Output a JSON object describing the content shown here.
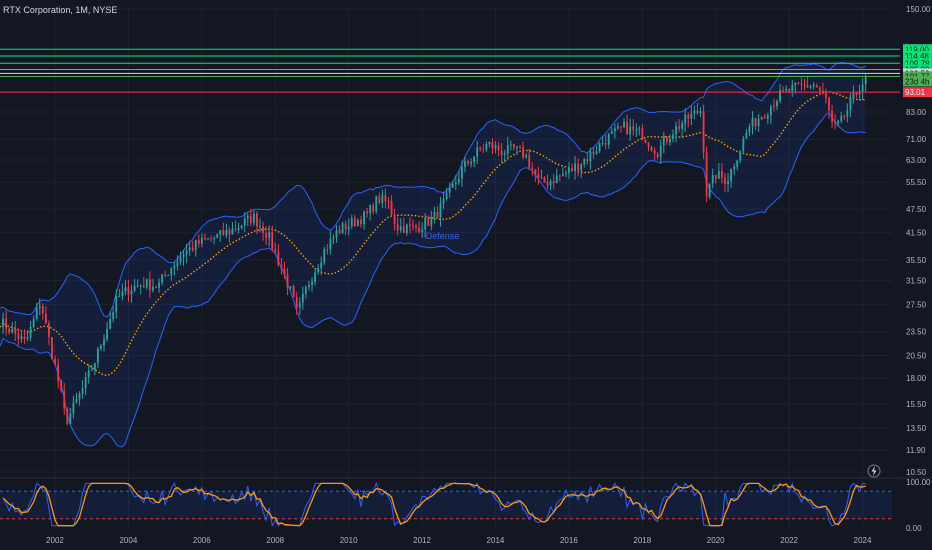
{
  "header": {
    "title": "RTX Corporation, 1M, NYSE"
  },
  "chart_data": [
    {
      "type": "candlestick",
      "title": "RTX Corporation, 1M, NYSE",
      "x_range": [
        2001.0,
        2025.3
      ],
      "y_scale": "log",
      "ylim": [
        10.5,
        150.0
      ],
      "grid": true,
      "y_tick_labels": [
        "150.00",
        "83.00",
        "71.00",
        "63.00",
        "55.50",
        "47.50",
        "41.50",
        "35.50",
        "31.50",
        "27.50",
        "23.50",
        "20.50",
        "18.00",
        "15.50",
        "13.50",
        "11.90",
        "10.50"
      ],
      "x_tick_labels": [
        "2002",
        "2004",
        "2006",
        "2008",
        "2010",
        "2012",
        "2014",
        "2016",
        "2018",
        "2020",
        "2022",
        "2024"
      ],
      "price_anchors": [
        [
          2001.0,
          25.0
        ],
        [
          2001.7,
          22.0
        ],
        [
          2002.1,
          28.0
        ],
        [
          2002.6,
          17.5
        ],
        [
          2002.8,
          14.0
        ],
        [
          2003.2,
          16.5
        ],
        [
          2003.6,
          20.0
        ],
        [
          2003.9,
          24.0
        ],
        [
          2004.2,
          28.5
        ],
        [
          2004.5,
          30.0
        ],
        [
          2004.9,
          31.0
        ],
        [
          2005.3,
          30.5
        ],
        [
          2005.6,
          33.5
        ],
        [
          2006.0,
          37.0
        ],
        [
          2006.4,
          39.0
        ],
        [
          2006.9,
          40.5
        ],
        [
          2007.3,
          42.0
        ],
        [
          2007.9,
          45.5
        ],
        [
          2008.3,
          41.0
        ],
        [
          2008.6,
          35.0
        ],
        [
          2008.9,
          30.0
        ],
        [
          2009.1,
          26.0
        ],
        [
          2009.4,
          31.0
        ],
        [
          2009.8,
          37.0
        ],
        [
          2010.2,
          42.0
        ],
        [
          2010.6,
          44.0
        ],
        [
          2011.0,
          46.0
        ],
        [
          2011.3,
          50.5
        ],
        [
          2011.6,
          49.0
        ],
        [
          2011.8,
          43.0
        ],
        [
          2012.3,
          42.5
        ],
        [
          2012.8,
          45.0
        ],
        [
          2013.2,
          51.0
        ],
        [
          2013.6,
          60.0
        ],
        [
          2014.0,
          66.0
        ],
        [
          2014.3,
          69.0
        ],
        [
          2014.7,
          66.0
        ],
        [
          2015.0,
          67.0
        ],
        [
          2015.3,
          65.0
        ],
        [
          2015.7,
          55.0
        ],
        [
          2016.0,
          56.0
        ],
        [
          2016.5,
          59.0
        ],
        [
          2017.0,
          64.0
        ],
        [
          2017.5,
          71.0
        ],
        [
          2018.0,
          76.0
        ],
        [
          2018.5,
          73.0
        ],
        [
          2018.9,
          66.0
        ],
        [
          2019.3,
          74.0
        ],
        [
          2019.8,
          81.0
        ],
        [
          2020.1,
          84.0
        ],
        [
          2020.25,
          52.0
        ],
        [
          2020.5,
          58.0
        ],
        [
          2020.8,
          56.0
        ],
        [
          2021.0,
          62.0
        ],
        [
          2021.4,
          76.0
        ],
        [
          2021.9,
          84.0
        ],
        [
          2022.2,
          91.0
        ],
        [
          2022.5,
          94.0
        ],
        [
          2022.8,
          96.0
        ],
        [
          2023.2,
          97.0
        ],
        [
          2023.5,
          89.0
        ],
        [
          2023.7,
          75.0
        ],
        [
          2023.9,
          78.0
        ],
        [
          2024.2,
          88.0
        ],
        [
          2024.4,
          95.0
        ],
        [
          2024.6,
          101.77
        ]
      ],
      "horizontal_levels": [
        {
          "label": "119.00",
          "value": 119.0,
          "color": "#00e676"
        },
        {
          "label": "114.48",
          "value": 114.48,
          "color": "#00e676"
        },
        {
          "label": "109.78",
          "value": 109.78,
          "color": "#00e676"
        },
        {
          "label": "105.93",
          "value": 105.93,
          "color": "#00e676"
        },
        {
          "label": "103.59",
          "value": 103.59,
          "color": "#d1d4dc"
        },
        {
          "label": "101.77",
          "value": 101.77,
          "color": "#4caf50"
        },
        {
          "label": "23d 4h",
          "value": 98.9,
          "color": "#4caf50"
        },
        {
          "label": "93.01",
          "value": 93.01,
          "color": "#f23645"
        }
      ],
      "annotations": [
        "Defense"
      ],
      "colors": {
        "up": "#26a69a",
        "down": "#f23645",
        "bands": "#2962ff",
        "moving_average": "#ff9800",
        "background": "#131722"
      }
    },
    {
      "type": "line",
      "ylim": [
        0,
        100
      ],
      "y_tick_labels": [
        "100.00",
        "0.00"
      ],
      "levels": [
        80,
        20
      ],
      "series": [
        {
          "color": "#2962ff"
        },
        {
          "color": "#ff9800"
        }
      ]
    }
  ],
  "icons": {
    "alert": "lightning-icon"
  }
}
